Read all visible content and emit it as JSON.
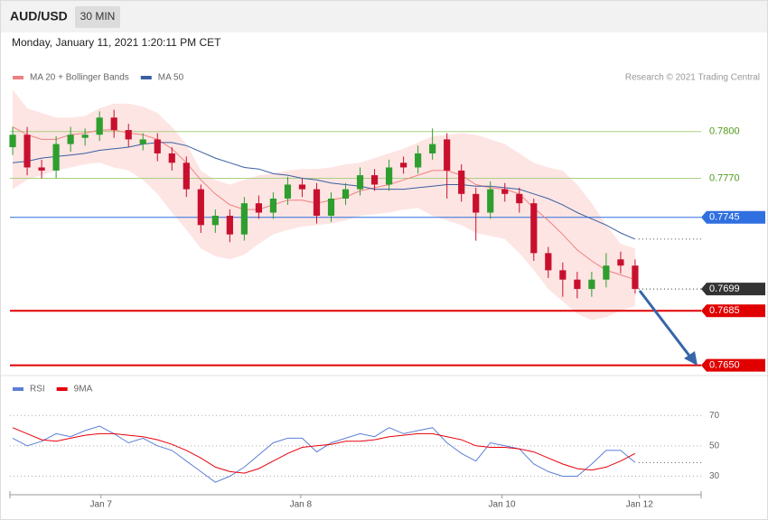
{
  "header": {
    "symbol": "AUD/USD",
    "interval": "30 MIN",
    "timestamp": "Monday, January 11, 2021 1:20:11 PM CET"
  },
  "chart_data": [
    {
      "type": "candlestick",
      "credit": "Research © 2021 Trading Central",
      "up_color": "#2e9e2e",
      "down_color": "#c8102e",
      "open": [
        0.779,
        0.7798,
        0.7777,
        0.7775,
        0.7792,
        0.7796,
        0.7798,
        0.7809,
        0.7801,
        0.7792,
        0.7795,
        0.7786,
        0.778,
        0.7763,
        0.774,
        0.7746,
        0.7734,
        0.7754,
        0.7748,
        0.7757,
        0.7766,
        0.7763,
        0.7746,
        0.7757,
        0.7763,
        0.7772,
        0.7766,
        0.778,
        0.7777,
        0.7786,
        0.7795,
        0.7775,
        0.776,
        0.7748,
        0.7763,
        0.776,
        0.7754,
        0.7722,
        0.7711,
        0.7705,
        0.7699,
        0.7705,
        0.7718,
        0.7714
      ],
      "high": [
        0.7803,
        0.7803,
        0.7782,
        0.7797,
        0.7803,
        0.7802,
        0.7813,
        0.7814,
        0.7805,
        0.7799,
        0.7799,
        0.779,
        0.7784,
        0.7766,
        0.775,
        0.775,
        0.7758,
        0.7759,
        0.7761,
        0.7771,
        0.777,
        0.7767,
        0.7761,
        0.7767,
        0.7777,
        0.7776,
        0.7782,
        0.7784,
        0.7791,
        0.7802,
        0.7799,
        0.7779,
        0.7764,
        0.7768,
        0.7767,
        0.7764,
        0.7757,
        0.7726,
        0.7716,
        0.771,
        0.771,
        0.7722,
        0.7723,
        0.7718
      ],
      "low": [
        0.7785,
        0.7772,
        0.777,
        0.777,
        0.7787,
        0.7791,
        0.7794,
        0.7796,
        0.779,
        0.7788,
        0.7781,
        0.7775,
        0.7758,
        0.7735,
        0.7735,
        0.7729,
        0.773,
        0.7744,
        0.7744,
        0.7753,
        0.7758,
        0.7741,
        0.7742,
        0.7753,
        0.7759,
        0.7762,
        0.7762,
        0.7773,
        0.7773,
        0.7782,
        0.7757,
        0.7755,
        0.773,
        0.7744,
        0.7755,
        0.7748,
        0.7717,
        0.7706,
        0.7694,
        0.7693,
        0.7694,
        0.77,
        0.7709,
        0.7696
      ],
      "close": [
        0.7798,
        0.7777,
        0.7775,
        0.7792,
        0.7798,
        0.7798,
        0.7809,
        0.7801,
        0.7795,
        0.7795,
        0.7786,
        0.778,
        0.7763,
        0.774,
        0.7746,
        0.7734,
        0.7754,
        0.7748,
        0.7757,
        0.7766,
        0.7763,
        0.7746,
        0.7757,
        0.7763,
        0.7772,
        0.7766,
        0.7777,
        0.7777,
        0.7786,
        0.7792,
        0.7775,
        0.776,
        0.7748,
        0.7763,
        0.776,
        0.7754,
        0.7722,
        0.7711,
        0.7705,
        0.7699,
        0.7705,
        0.7714,
        0.7714,
        0.7699
      ],
      "series": [
        {
          "name": "MA 20 + Bollinger Bands",
          "color": "#f08080",
          "values": [
            0.7803,
            0.7798,
            0.7795,
            0.7795,
            0.7798,
            0.7799,
            0.7801,
            0.7801,
            0.7799,
            0.7798,
            0.7795,
            0.7789,
            0.778,
            0.7769,
            0.776,
            0.7753,
            0.775,
            0.775,
            0.7753,
            0.7756,
            0.7756,
            0.7754,
            0.7756,
            0.7758,
            0.7762,
            0.7764,
            0.7766,
            0.7769,
            0.7772,
            0.7775,
            0.7775,
            0.7772,
            0.7766,
            0.7764,
            0.7763,
            0.776,
            0.7751,
            0.7743,
            0.7734,
            0.7724,
            0.7717,
            0.7711,
            0.7708,
            0.7705
          ]
        },
        {
          "name": "MA 50",
          "color": "#3a5fa0",
          "values": [
            0.778,
            0.7781,
            0.7783,
            0.7784,
            0.7785,
            0.7786,
            0.7788,
            0.7789,
            0.779,
            0.7792,
            0.7793,
            0.7793,
            0.7791,
            0.7787,
            0.7783,
            0.778,
            0.7777,
            0.7776,
            0.7773,
            0.7772,
            0.777,
            0.7769,
            0.7767,
            0.7766,
            0.7765,
            0.7763,
            0.7763,
            0.7763,
            0.7764,
            0.7765,
            0.7766,
            0.7766,
            0.7765,
            0.7765,
            0.7764,
            0.7763,
            0.776,
            0.7757,
            0.7753,
            0.7748,
            0.7744,
            0.774,
            0.7735,
            0.7731
          ]
        }
      ],
      "bands": {
        "color": "#fde0de",
        "upper": [
          0.7827,
          0.7815,
          0.7812,
          0.7809,
          0.7809,
          0.781,
          0.7815,
          0.7818,
          0.7818,
          0.7816,
          0.7812,
          0.7803,
          0.7792,
          0.7775,
          0.7769,
          0.7766,
          0.7769,
          0.7772,
          0.7773,
          0.7775,
          0.7776,
          0.7776,
          0.7777,
          0.7779,
          0.778,
          0.7783,
          0.7786,
          0.7789,
          0.7793,
          0.7797,
          0.7798,
          0.7799,
          0.7798,
          0.7795,
          0.7792,
          0.7786,
          0.778,
          0.7777,
          0.7775,
          0.7766,
          0.7754,
          0.774,
          0.7728,
          0.7725
        ],
        "lower": [
          0.7763,
          0.7769,
          0.7772,
          0.7775,
          0.7777,
          0.7779,
          0.778,
          0.7777,
          0.7775,
          0.7769,
          0.776,
          0.7748,
          0.7737,
          0.7725,
          0.772,
          0.7718,
          0.7721,
          0.7728,
          0.7734,
          0.7737,
          0.7739,
          0.774,
          0.7741,
          0.7743,
          0.7746,
          0.7747,
          0.7748,
          0.775,
          0.7751,
          0.7746,
          0.7743,
          0.774,
          0.7735,
          0.7733,
          0.7731,
          0.7722,
          0.7711,
          0.7699,
          0.7691,
          0.7683,
          0.7679,
          0.7681,
          0.7685,
          0.7688
        ]
      },
      "levels": [
        {
          "value": 0.78,
          "label": "0.7800",
          "color": "#a8d080",
          "text_color": "#4f9a1a",
          "box": false,
          "line": "solid",
          "width": 1
        },
        {
          "value": 0.777,
          "label": "0.7770",
          "color": "#a8d080",
          "text_color": "#4f9a1a",
          "box": false,
          "line": "solid",
          "width": 1
        },
        {
          "value": 0.7745,
          "label": "0.7745",
          "color": "#2f6fe0",
          "text_color": "#ffffff",
          "box": true,
          "line": "solid",
          "width": 1
        },
        {
          "value": 0.7699,
          "label": "0.7699",
          "color": "#333333",
          "text_color": "#ffffff",
          "box": true,
          "line": "dotted",
          "width": 1
        },
        {
          "value": 0.7685,
          "label": "0.7685",
          "color": "#e00000",
          "text_color": "#ffffff",
          "box": true,
          "line": "solid",
          "width": 2
        },
        {
          "value": 0.765,
          "label": "0.7650",
          "color": "#e00000",
          "text_color": "#ffffff",
          "box": true,
          "line": "solid",
          "width": 2
        }
      ],
      "xlim": [
        -0.19,
        47.56
      ],
      "ylim": [
        0.7644,
        0.783
      ]
    },
    {
      "type": "line",
      "series": [
        {
          "name": "RSI",
          "color": "#5b7fd6",
          "values": [
            55,
            50,
            53,
            58,
            56,
            60,
            63,
            58,
            52,
            55,
            50,
            47,
            40,
            33,
            26,
            30,
            36,
            44,
            52,
            55,
            55,
            46,
            52,
            55,
            58,
            56,
            62,
            58,
            60,
            62,
            52,
            45,
            40,
            52,
            50,
            48,
            38,
            33,
            30,
            30,
            38,
            47,
            47,
            39
          ]
        },
        {
          "name": "9MA",
          "color": "#e8000b",
          "values": [
            62,
            58,
            54,
            53,
            55,
            57,
            58,
            58,
            57,
            56,
            54,
            51,
            47,
            42,
            36,
            33,
            32,
            35,
            40,
            45,
            49,
            50,
            51,
            53,
            53,
            54,
            56,
            57,
            58,
            58,
            56,
            54,
            50,
            49,
            49,
            48,
            46,
            42,
            38,
            35,
            34,
            36,
            40,
            45
          ]
        }
      ],
      "xlim": [
        -0.19,
        47.56
      ],
      "ylim": [
        19,
        82
      ],
      "yticks": [
        30,
        50,
        70
      ],
      "xticks": [
        {
          "value": 6.1,
          "label": "Jan 7"
        },
        {
          "value": 19.9,
          "label": "Jan 8"
        },
        {
          "value": 33.8,
          "label": "Jan 10"
        },
        {
          "value": 43.3,
          "label": "Jan 12"
        }
      ]
    }
  ]
}
